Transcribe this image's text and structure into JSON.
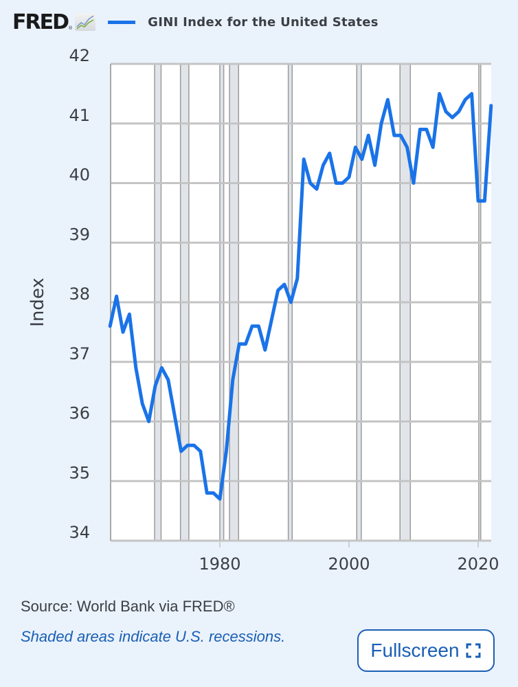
{
  "header": {
    "logo": "FRED",
    "logo_reg": "®",
    "legend_label": "GINI Index for the United States",
    "line_color": "#1a73e8"
  },
  "footer": {
    "source": "Source: World Bank via FRED®",
    "note": "Shaded areas indicate U.S. recessions.",
    "fullscreen_label": "Fullscreen",
    "fullscreen_icon": "fullscreen-icon"
  },
  "chart_data": {
    "type": "line",
    "title": "GINI Index for the United States",
    "xlabel": "",
    "ylabel": "Index",
    "xlim": [
      1963,
      2022
    ],
    "ylim": [
      34,
      42
    ],
    "grid": true,
    "legend_position": "top",
    "y_ticks": [
      34,
      35,
      36,
      37,
      38,
      39,
      40,
      41,
      42
    ],
    "x_ticks": [
      1980,
      2000,
      2020
    ],
    "recessions": [
      [
        1969.9,
        1970.9
      ],
      [
        1973.9,
        1975.2
      ],
      [
        1980.0,
        1980.6
      ],
      [
        1981.5,
        1982.9
      ],
      [
        1990.6,
        1991.2
      ],
      [
        2001.2,
        2001.9
      ],
      [
        2007.9,
        2009.5
      ],
      [
        2020.1,
        2020.4
      ]
    ],
    "series": [
      {
        "name": "GINI Index for the United States",
        "x": [
          1963,
          1964,
          1965,
          1966,
          1967,
          1968,
          1969,
          1970,
          1971,
          1972,
          1973,
          1974,
          1975,
          1976,
          1977,
          1978,
          1979,
          1980,
          1981,
          1982,
          1983,
          1984,
          1985,
          1986,
          1987,
          1988,
          1989,
          1990,
          1991,
          1992,
          1993,
          1994,
          1995,
          1996,
          1997,
          1998,
          1999,
          2000,
          2001,
          2002,
          2003,
          2004,
          2005,
          2006,
          2007,
          2008,
          2009,
          2010,
          2011,
          2012,
          2013,
          2014,
          2015,
          2016,
          2017,
          2018,
          2019,
          2020,
          2021,
          2022
        ],
        "values": [
          37.6,
          38.1,
          37.5,
          37.8,
          36.9,
          36.3,
          36.0,
          36.6,
          36.9,
          36.7,
          36.1,
          35.5,
          35.6,
          35.6,
          35.5,
          34.8,
          34.8,
          34.7,
          35.5,
          36.7,
          37.3,
          37.3,
          37.6,
          37.6,
          37.2,
          37.7,
          38.2,
          38.3,
          38.0,
          38.4,
          40.4,
          40.0,
          39.9,
          40.3,
          40.5,
          40.0,
          40.0,
          40.1,
          40.6,
          40.4,
          40.8,
          40.3,
          41.0,
          41.4,
          40.8,
          40.8,
          40.6,
          40.0,
          40.9,
          40.9,
          40.6,
          41.5,
          41.2,
          41.1,
          41.2,
          41.4,
          41.5,
          39.7,
          39.7,
          41.3
        ]
      }
    ]
  }
}
